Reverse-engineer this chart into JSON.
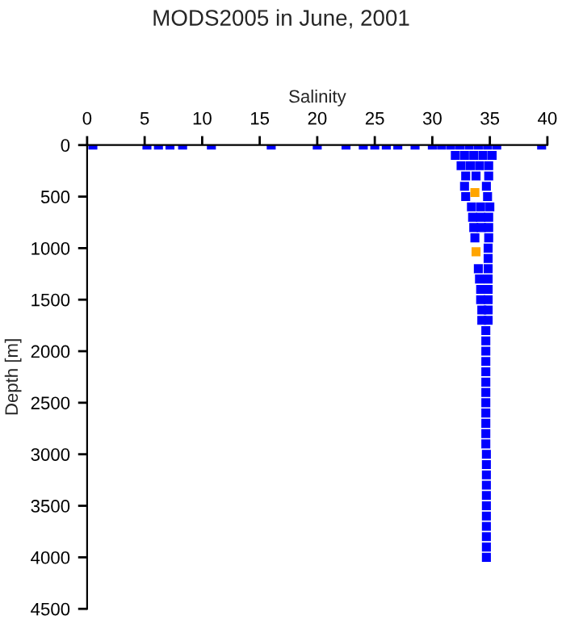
{
  "chart_data": {
    "type": "scatter",
    "title": "MODS2005 in June, 2001",
    "xlabel": "Salinity",
    "ylabel": "Depth [m]",
    "xlim": [
      0,
      40
    ],
    "xticks": [
      0,
      5,
      10,
      15,
      20,
      25,
      30,
      35,
      40
    ],
    "ylim": [
      4500,
      0
    ],
    "yticks": [
      0,
      500,
      1000,
      1500,
      2000,
      2500,
      3000,
      3500,
      4000,
      4500
    ],
    "grid": false,
    "legend": false,
    "marker": "square",
    "series": [
      {
        "color": "#0000ff",
        "x": [
          0.5,
          5.2,
          6.2,
          7.2,
          8.3,
          10.8,
          16,
          20,
          22.5,
          24,
          25,
          26,
          27,
          28.5,
          30,
          30.8,
          31.6,
          32.4,
          33.2,
          34,
          34.8,
          35.6,
          39.5,
          32,
          32.8,
          33.6,
          34.4,
          35.2,
          32.5,
          33.3,
          34.1,
          34.9,
          32.9,
          33.8,
          34.9,
          32.8,
          34.7,
          32.9,
          34.8,
          33.4,
          34.2,
          35,
          33.5,
          34.2,
          34.9,
          33.6,
          34.25,
          34.9,
          33.7,
          34.9,
          34.85,
          34.85,
          34,
          34.85,
          34.1,
          34.85,
          34.2,
          34.85,
          34.2,
          34.85,
          34.3,
          34.85,
          34.3,
          34.85,
          34.65,
          34.65,
          34.65,
          34.65,
          34.65,
          34.65,
          34.65,
          34.65,
          34.65,
          34.65,
          34.65,
          34.65,
          34.7,
          34.7,
          34.7,
          34.7,
          34.7,
          34.7,
          34.7,
          34.7,
          34.7,
          34.7,
          34.7
        ],
        "values": [
          0,
          0,
          0,
          0,
          0,
          0,
          0,
          0,
          0,
          0,
          0,
          0,
          0,
          0,
          0,
          0,
          0,
          0,
          0,
          0,
          0,
          0,
          0,
          100,
          100,
          100,
          100,
          100,
          200,
          200,
          200,
          200,
          300,
          300,
          300,
          400,
          400,
          500,
          500,
          600,
          600,
          600,
          700,
          700,
          700,
          800,
          800,
          800,
          900,
          900,
          1000,
          1100,
          1200,
          1200,
          1300,
          1300,
          1400,
          1400,
          1500,
          1500,
          1600,
          1600,
          1700,
          1700,
          1800,
          1900,
          2000,
          2100,
          2200,
          2300,
          2400,
          2500,
          2600,
          2700,
          2800,
          2900,
          3000,
          3100,
          3200,
          3300,
          3400,
          3500,
          3600,
          3700,
          3800,
          3900,
          4000
        ]
      },
      {
        "color": "#ffa500",
        "x": [
          33.7,
          33.8
        ],
        "values": [
          460,
          1035
        ]
      }
    ]
  }
}
